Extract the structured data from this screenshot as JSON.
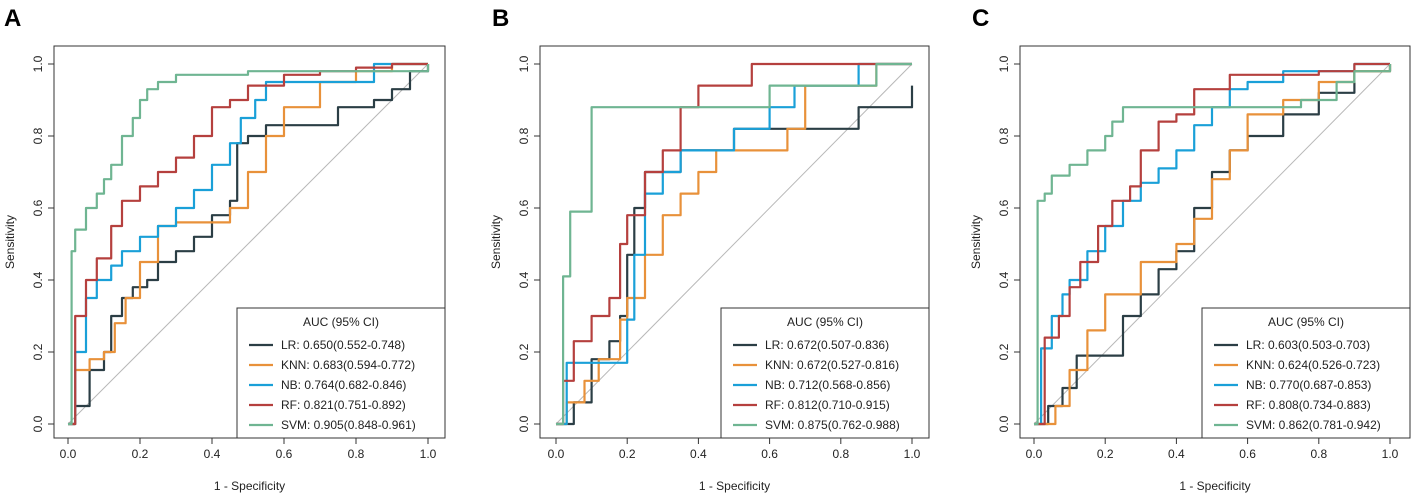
{
  "chart_data": [
    {
      "type": "line",
      "panel": "A",
      "xlabel": "1 - Specificity",
      "ylabel": "Sensitivity",
      "xlim": [
        0,
        1
      ],
      "ylim": [
        0,
        1
      ],
      "xticks": [
        "0.0",
        "0.2",
        "0.4",
        "0.6",
        "0.8",
        "1.0"
      ],
      "yticks": [
        "0.0",
        "0.2",
        "0.4",
        "0.6",
        "0.8",
        "1.0"
      ],
      "legend_title": "AUC (95% CI)",
      "legend_position": "bottom-right",
      "series": [
        {
          "name": "LR",
          "label": "LR: 0.650(0.552-0.748)",
          "color": "#2b3e45",
          "x": [
            0,
            0.02,
            0.05,
            0.06,
            0.1,
            0.12,
            0.15,
            0.18,
            0.22,
            0.25,
            0.3,
            0.35,
            0.4,
            0.45,
            0.47,
            0.5,
            0.55,
            0.65,
            0.75,
            0.85,
            0.9,
            0.95,
            1.0
          ],
          "y": [
            0,
            0.05,
            0.05,
            0.15,
            0.2,
            0.3,
            0.35,
            0.38,
            0.4,
            0.45,
            0.48,
            0.52,
            0.58,
            0.62,
            0.78,
            0.8,
            0.83,
            0.83,
            0.88,
            0.9,
            0.93,
            0.98,
            1.0
          ]
        },
        {
          "name": "KNN",
          "label": "KNN: 0.683(0.594-0.772)",
          "color": "#e8913a",
          "x": [
            0,
            0.02,
            0.06,
            0.1,
            0.13,
            0.16,
            0.2,
            0.25,
            0.3,
            0.38,
            0.45,
            0.5,
            0.55,
            0.6,
            0.7,
            0.8,
            0.9,
            1.0
          ],
          "y": [
            0,
            0.15,
            0.18,
            0.2,
            0.28,
            0.35,
            0.45,
            0.55,
            0.56,
            0.56,
            0.6,
            0.7,
            0.8,
            0.88,
            0.95,
            0.98,
            1.0,
            1.0
          ]
        },
        {
          "name": "NB",
          "label": "NB: 0.764(0.682-0.846)",
          "color": "#1aa0d8",
          "x": [
            0,
            0.02,
            0.05,
            0.08,
            0.12,
            0.15,
            0.2,
            0.25,
            0.3,
            0.35,
            0.4,
            0.45,
            0.48,
            0.52,
            0.55,
            0.65,
            0.75,
            0.85,
            0.9,
            1.0
          ],
          "y": [
            0,
            0.2,
            0.35,
            0.4,
            0.44,
            0.48,
            0.52,
            0.55,
            0.6,
            0.65,
            0.72,
            0.78,
            0.85,
            0.9,
            0.95,
            0.95,
            0.95,
            1.0,
            1.0,
            1.0
          ]
        },
        {
          "name": "RF",
          "label": "RF: 0.821(0.751-0.892)",
          "color": "#b5403e",
          "x": [
            0,
            0.02,
            0.05,
            0.08,
            0.12,
            0.15,
            0.2,
            0.25,
            0.3,
            0.35,
            0.4,
            0.45,
            0.5,
            0.6,
            0.7,
            0.8,
            0.9,
            1.0
          ],
          "y": [
            0,
            0.3,
            0.4,
            0.46,
            0.55,
            0.62,
            0.66,
            0.7,
            0.74,
            0.8,
            0.88,
            0.9,
            0.94,
            0.97,
            0.98,
            0.99,
            1.0,
            1.0
          ]
        },
        {
          "name": "SVM",
          "label": "SVM: 0.905(0.848-0.961)",
          "color": "#6fb592",
          "x": [
            0,
            0.01,
            0.02,
            0.05,
            0.08,
            0.1,
            0.12,
            0.15,
            0.18,
            0.2,
            0.22,
            0.25,
            0.3,
            0.4,
            0.5,
            0.7,
            1.0
          ],
          "y": [
            0,
            0.48,
            0.54,
            0.6,
            0.64,
            0.68,
            0.72,
            0.8,
            0.85,
            0.9,
            0.93,
            0.95,
            0.97,
            0.97,
            0.98,
            0.98,
            1.0
          ]
        }
      ]
    },
    {
      "type": "line",
      "panel": "B",
      "xlabel": "1 - Specificity",
      "ylabel": "Sensitivity",
      "xlim": [
        0,
        1
      ],
      "ylim": [
        0,
        1
      ],
      "xticks": [
        "0.0",
        "0.2",
        "0.4",
        "0.6",
        "0.8",
        "1.0"
      ],
      "yticks": [
        "0.0",
        "0.2",
        "0.4",
        "0.6",
        "0.8",
        "1.0"
      ],
      "legend_title": "AUC (95% CI)",
      "legend_position": "bottom-right",
      "series": [
        {
          "name": "LR",
          "label": "LR: 0.672(0.507-0.836)",
          "color": "#2b3e45",
          "x": [
            0,
            0.05,
            0.1,
            0.15,
            0.18,
            0.2,
            0.22,
            0.25,
            0.3,
            0.35,
            0.4,
            0.5,
            0.6,
            0.7,
            0.8,
            0.85,
            0.9,
            1.0
          ],
          "y": [
            0,
            0.06,
            0.18,
            0.23,
            0.3,
            0.47,
            0.6,
            0.7,
            0.7,
            0.76,
            0.76,
            0.82,
            0.82,
            0.82,
            0.82,
            0.88,
            0.88,
            0.94
          ]
        },
        {
          "name": "KNN",
          "label": "KNN: 0.672(0.527-0.816)",
          "color": "#e8913a",
          "x": [
            0,
            0.03,
            0.08,
            0.12,
            0.18,
            0.2,
            0.25,
            0.3,
            0.35,
            0.4,
            0.45,
            0.55,
            0.65,
            0.7,
            0.8,
            0.9,
            1.0
          ],
          "y": [
            0,
            0.06,
            0.12,
            0.18,
            0.29,
            0.35,
            0.47,
            0.58,
            0.64,
            0.7,
            0.76,
            0.76,
            0.82,
            0.94,
            0.94,
            1.0,
            1.0
          ]
        },
        {
          "name": "NB",
          "label": "NB: 0.712(0.568-0.856)",
          "color": "#1aa0d8",
          "x": [
            0,
            0.03,
            0.1,
            0.2,
            0.22,
            0.25,
            0.3,
            0.35,
            0.4,
            0.5,
            0.6,
            0.67,
            0.8,
            0.85,
            0.9,
            1.0
          ],
          "y": [
            0,
            0.17,
            0.17,
            0.29,
            0.47,
            0.64,
            0.7,
            0.76,
            0.76,
            0.82,
            0.88,
            0.94,
            0.94,
            1.0,
            1.0,
            1.0
          ]
        },
        {
          "name": "RF",
          "label": "RF: 0.812(0.710-0.915)",
          "color": "#b5403e",
          "x": [
            0,
            0.02,
            0.05,
            0.1,
            0.15,
            0.18,
            0.2,
            0.25,
            0.3,
            0.35,
            0.4,
            0.45,
            0.55,
            0.7,
            0.8,
            0.9,
            1.0
          ],
          "y": [
            0,
            0.12,
            0.23,
            0.3,
            0.35,
            0.5,
            0.58,
            0.7,
            0.76,
            0.88,
            0.94,
            0.94,
            1.0,
            1.0,
            1.0,
            1.0,
            1.0
          ]
        },
        {
          "name": "SVM",
          "label": "SVM: 0.875(0.762-0.988)",
          "color": "#6fb592",
          "x": [
            0,
            0.02,
            0.04,
            0.1,
            0.3,
            0.5,
            0.6,
            0.8,
            0.9,
            1.0
          ],
          "y": [
            0,
            0.41,
            0.59,
            0.88,
            0.88,
            0.88,
            0.94,
            0.94,
            1.0,
            1.0
          ]
        }
      ]
    },
    {
      "type": "line",
      "panel": "C",
      "xlabel": "1 - Specificity",
      "ylabel": "Sensitivity",
      "xlim": [
        0,
        1
      ],
      "ylim": [
        0,
        1
      ],
      "xticks": [
        "0.0",
        "0.2",
        "0.4",
        "0.6",
        "0.8",
        "1.0"
      ],
      "yticks": [
        "0.0",
        "0.2",
        "0.4",
        "0.6",
        "0.8",
        "1.0"
      ],
      "legend_title": "AUC (95% CI)",
      "legend_position": "bottom-right",
      "series": [
        {
          "name": "LR",
          "label": "LR: 0.603(0.503-0.703)",
          "color": "#2b3e45",
          "x": [
            0,
            0.04,
            0.08,
            0.12,
            0.2,
            0.25,
            0.3,
            0.35,
            0.4,
            0.45,
            0.5,
            0.55,
            0.6,
            0.7,
            0.8,
            0.9,
            1.0
          ],
          "y": [
            0,
            0.05,
            0.1,
            0.19,
            0.19,
            0.3,
            0.36,
            0.43,
            0.48,
            0.6,
            0.7,
            0.76,
            0.8,
            0.86,
            0.92,
            0.98,
            1.0
          ]
        },
        {
          "name": "KNN",
          "label": "KNN: 0.624(0.526-0.723)",
          "color": "#e8913a",
          "x": [
            0,
            0.03,
            0.06,
            0.1,
            0.15,
            0.2,
            0.3,
            0.4,
            0.45,
            0.5,
            0.55,
            0.6,
            0.7,
            0.8,
            0.9,
            1.0
          ],
          "y": [
            0,
            0.0,
            0.05,
            0.15,
            0.26,
            0.36,
            0.45,
            0.5,
            0.57,
            0.68,
            0.76,
            0.86,
            0.9,
            0.95,
            0.98,
            1.0
          ]
        },
        {
          "name": "NB",
          "label": "NB: 0.770(0.687-0.853)",
          "color": "#1aa0d8",
          "x": [
            0,
            0.02,
            0.05,
            0.08,
            0.1,
            0.15,
            0.2,
            0.25,
            0.3,
            0.35,
            0.4,
            0.45,
            0.5,
            0.55,
            0.6,
            0.7,
            0.8,
            0.9,
            1.0
          ],
          "y": [
            0,
            0.21,
            0.3,
            0.36,
            0.4,
            0.48,
            0.55,
            0.62,
            0.67,
            0.71,
            0.76,
            0.83,
            0.88,
            0.93,
            0.95,
            0.98,
            0.98,
            1.0,
            1.0
          ]
        },
        {
          "name": "RF",
          "label": "RF: 0.808(0.734-0.883)",
          "color": "#b5403e",
          "x": [
            0,
            0.03,
            0.07,
            0.1,
            0.13,
            0.18,
            0.22,
            0.27,
            0.3,
            0.35,
            0.4,
            0.45,
            0.55,
            0.7,
            0.8,
            0.9,
            1.0
          ],
          "y": [
            0,
            0.24,
            0.3,
            0.38,
            0.45,
            0.55,
            0.62,
            0.66,
            0.76,
            0.84,
            0.86,
            0.93,
            0.97,
            0.97,
            0.98,
            1.0,
            1.0
          ]
        },
        {
          "name": "SVM",
          "label": "SVM: 0.862(0.781-0.942)",
          "color": "#6fb592",
          "x": [
            0,
            0.01,
            0.03,
            0.05,
            0.1,
            0.15,
            0.2,
            0.22,
            0.25,
            0.35,
            0.5,
            0.65,
            0.75,
            0.85,
            0.9,
            1.0
          ],
          "y": [
            0,
            0.62,
            0.64,
            0.69,
            0.72,
            0.76,
            0.8,
            0.84,
            0.88,
            0.88,
            0.88,
            0.88,
            0.9,
            0.95,
            0.98,
            1.0
          ]
        }
      ]
    }
  ]
}
